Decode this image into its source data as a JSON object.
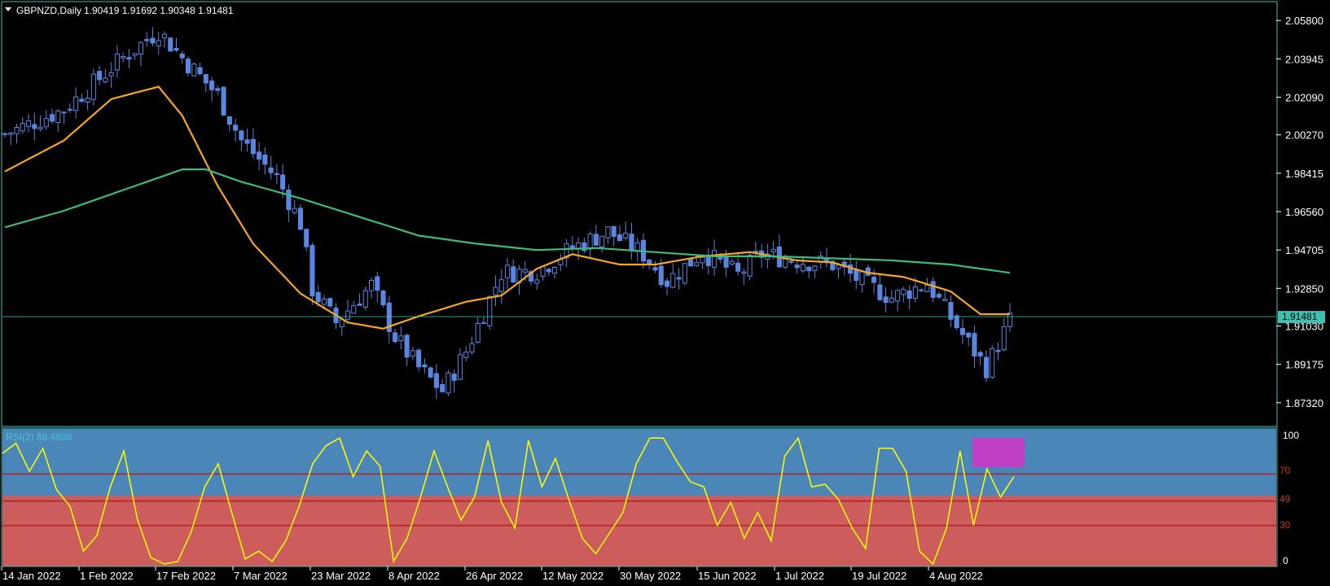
{
  "header": {
    "symbol": "GBPNZD,Daily",
    "ohlc": "1.90419 1.91692 1.90348 1.91481"
  },
  "current_price_label": "1.91481",
  "rsi": {
    "label": "RSI(2) 68.4888",
    "levels": [
      {
        "value": 70,
        "label": "70"
      },
      {
        "value": 49,
        "label": "49"
      },
      {
        "value": 30,
        "label": "30"
      }
    ],
    "axis_labels": [
      "100",
      "0"
    ]
  },
  "colors": {
    "background": "#000000",
    "frame": "#3fbfb0",
    "candle": "#5b86e0",
    "ma_fast": "#f5a623",
    "ma_slow": "#3dbb78",
    "rsi_line": "#ffff00",
    "rsi_upper_zone": "#4a86b8",
    "rsi_lower_zone": "#cd5c5c",
    "rsi_level": "#b22222",
    "highlight": "#c040c8",
    "price_tag": "#3fbfb0"
  },
  "chart_data": {
    "type": "candlestick",
    "price_axis": [
      "2.05800",
      "2.03945",
      "2.02090",
      "2.00270",
      "1.98415",
      "1.96560",
      "1.94705",
      "1.92850",
      "1.91030",
      "1.89175",
      "1.87320"
    ],
    "ylim": [
      1.868,
      2.062
    ],
    "current_price": 1.91481,
    "date_axis": [
      "14 Jan 2022",
      "1 Feb 2022",
      "17 Feb 2022",
      "7 Mar 2022",
      "23 Mar 2022",
      "8 Apr 2022",
      "26 Apr 2022",
      "12 May 2022",
      "30 May 2022",
      "15 Jun 2022",
      "1 Jul 2022",
      "19 Jul 2022",
      "4 Aug 2022"
    ],
    "close_path": [
      [
        0,
        2.003
      ],
      [
        10,
        2.015
      ],
      [
        20,
        2.04
      ],
      [
        26,
        2.053
      ],
      [
        30,
        2.04
      ],
      [
        36,
        2.022
      ],
      [
        40,
        2.0
      ],
      [
        46,
        1.982
      ],
      [
        50,
        1.96
      ],
      [
        52,
        1.928
      ],
      [
        56,
        1.912
      ],
      [
        62,
        1.93
      ],
      [
        66,
        1.905
      ],
      [
        70,
        1.89
      ],
      [
        74,
        1.879
      ],
      [
        78,
        1.898
      ],
      [
        84,
        1.936
      ],
      [
        90,
        1.937
      ],
      [
        96,
        1.948
      ],
      [
        102,
        1.956
      ],
      [
        108,
        1.945
      ],
      [
        112,
        1.932
      ],
      [
        118,
        1.946
      ],
      [
        124,
        1.935
      ],
      [
        128,
        1.945
      ],
      [
        134,
        1.942
      ],
      [
        140,
        1.94
      ],
      [
        146,
        1.93
      ],
      [
        150,
        1.924
      ],
      [
        156,
        1.931
      ],
      [
        162,
        1.906
      ],
      [
        166,
        1.89
      ],
      [
        170,
        1.913
      ]
    ],
    "series": [
      {
        "values": [
          [
            0,
            1.985
          ],
          [
            10,
            2.0
          ],
          [
            18,
            2.02
          ],
          [
            26,
            2.026
          ],
          [
            30,
            2.012
          ],
          [
            36,
            1.978
          ],
          [
            42,
            1.95
          ],
          [
            50,
            1.926
          ],
          [
            58,
            1.912
          ],
          [
            64,
            1.909
          ],
          [
            70,
            1.915
          ],
          [
            78,
            1.922
          ],
          [
            84,
            1.925
          ],
          [
            90,
            1.938
          ],
          [
            96,
            1.945
          ],
          [
            104,
            1.94
          ],
          [
            110,
            1.94
          ],
          [
            118,
            1.944
          ],
          [
            126,
            1.946
          ],
          [
            134,
            1.942
          ],
          [
            140,
            1.941
          ],
          [
            146,
            1.936
          ],
          [
            152,
            1.934
          ],
          [
            160,
            1.927
          ],
          [
            165,
            1.916
          ],
          [
            170,
            1.916
          ]
        ]
      },
      {
        "values": [
          [
            0,
            1.958
          ],
          [
            10,
            1.966
          ],
          [
            20,
            1.976
          ],
          [
            30,
            1.986
          ],
          [
            34,
            1.986
          ],
          [
            40,
            1.98
          ],
          [
            50,
            1.972
          ],
          [
            60,
            1.963
          ],
          [
            70,
            1.954
          ],
          [
            80,
            1.95
          ],
          [
            90,
            1.947
          ],
          [
            100,
            1.948
          ],
          [
            110,
            1.946
          ],
          [
            120,
            1.944
          ],
          [
            130,
            1.944
          ],
          [
            140,
            1.943
          ],
          [
            150,
            1.942
          ],
          [
            160,
            1.94
          ],
          [
            170,
            1.936
          ]
        ]
      }
    ],
    "rsi_series": [
      86,
      94,
      72,
      90,
      58,
      45,
      10,
      22,
      60,
      88,
      35,
      5,
      0,
      2,
      25,
      60,
      78,
      40,
      4,
      10,
      2,
      18,
      45,
      78,
      92,
      98,
      68,
      88,
      76,
      2,
      20,
      52,
      88,
      60,
      34,
      52,
      96,
      48,
      28,
      96,
      60,
      82,
      50,
      20,
      8,
      24,
      40,
      78,
      98,
      98,
      80,
      64,
      60,
      30,
      48,
      20,
      40,
      18,
      84,
      98,
      60,
      62,
      50,
      28,
      12,
      90,
      90,
      72,
      10,
      0,
      28,
      88,
      30,
      74,
      52,
      68
    ],
    "rsi_ylim": [
      0,
      100
    ]
  }
}
